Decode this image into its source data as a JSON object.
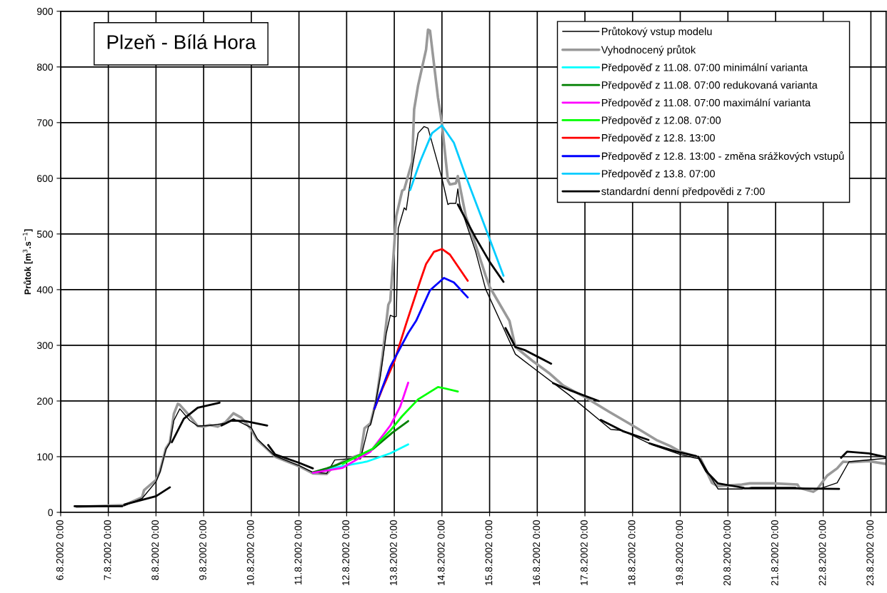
{
  "chart_data": {
    "type": "line",
    "title": "Plzeň - Bílá Hora",
    "ylabel": "Průtok [m$^{3}$.s$^{−1}$]",
    "xlim": [
      "2002-08-06T00:00",
      "2002-08-23T07:40"
    ],
    "ylim": [
      0,
      900
    ],
    "yticks": [
      0,
      100,
      200,
      300,
      400,
      500,
      600,
      700,
      800,
      900
    ],
    "xticks": [
      {
        "value": "2002-08-06",
        "label": "6.8.2002 0:00"
      },
      {
        "value": "2002-08-07",
        "label": "7.8.2002 0:00"
      },
      {
        "value": "2002-08-08",
        "label": "8.8.2002 0:00"
      },
      {
        "value": "2002-08-09",
        "label": "9.8.2002 0:00"
      },
      {
        "value": "2002-08-10",
        "label": "10.8.2002 0:00"
      },
      {
        "value": "2002-08-11",
        "label": "11.8.2002 0:00"
      },
      {
        "value": "2002-08-12",
        "label": "12.8.2002 0:00"
      },
      {
        "value": "2002-08-13",
        "label": "13.8.2002 0:00"
      },
      {
        "value": "2002-08-14",
        "label": "14.8.2002 0:00"
      },
      {
        "value": "2002-08-15",
        "label": "15.8.2002 0:00"
      },
      {
        "value": "2002-08-16",
        "label": "16.8.2002 0:00"
      },
      {
        "value": "2002-08-17",
        "label": "17.8.2002 0:00"
      },
      {
        "value": "2002-08-18",
        "label": "18.8.2002 0:00"
      },
      {
        "value": "2002-08-19",
        "label": "19.8.2002 0:00"
      },
      {
        "value": "2002-08-20",
        "label": "20.8.2002 0:00"
      },
      {
        "value": "2002-08-21",
        "label": "21.8.2002 0:00"
      },
      {
        "value": "2002-08-22",
        "label": "22.8.2002 0:00"
      },
      {
        "value": "2002-08-23",
        "label": "23.8.2002 0:00"
      }
    ],
    "grid": true,
    "legend": "top right",
    "marker": "none",
    "line_style": "solid",
    "series": [
      {
        "name": "Průtokový vstup modelu",
        "color": "#000000",
        "x": [
          "2002-08-06T08:00",
          "2002-08-07T08:00",
          "2002-08-07T17:00",
          "2002-08-08T00:00",
          "2002-08-08T02:00",
          "2002-08-08T05:00",
          "2002-08-08T07:00",
          "2002-08-08T09:00",
          "2002-08-08T12:00",
          "2002-08-08T17:00",
          "2002-08-08T21:00",
          "2002-08-09T03:00",
          "2002-08-09T11:00",
          "2002-08-09T15:00",
          "2002-08-10T00:00",
          "2002-08-10T03:00",
          "2002-08-10T07:00",
          "2002-08-10T12:00",
          "2002-08-11T00:00",
          "2002-08-11T07:00",
          "2002-08-11T14:00",
          "2002-08-11T18:00",
          "2002-08-12T00:00",
          "2002-08-12T07:00",
          "2002-08-12T11:00",
          "2002-08-12T12:00",
          "2002-08-12T14:00",
          "2002-08-12T17:00",
          "2002-08-12T20:00",
          "2002-08-12T22:00",
          "2002-08-13T00:00",
          "2002-08-13T01:00",
          "2002-08-13T02:00",
          "2002-08-13T05:00",
          "2002-08-13T06:00",
          "2002-08-13T09:00",
          "2002-08-13T12:00",
          "2002-08-13T15:00",
          "2002-08-13T17:00",
          "2002-08-14T00:00",
          "2002-08-14T03:00",
          "2002-08-14T04:00",
          "2002-08-14T07:00",
          "2002-08-14T08:00",
          "2002-08-14T09:00",
          "2002-08-14T17:00",
          "2002-08-14T22:00",
          "2002-08-15T07:00",
          "2002-08-15T13:00",
          "2002-08-16T00:00",
          "2002-08-16T16:00",
          "2002-08-17T13:00",
          "2002-08-17T19:00",
          "2002-08-18T10:00",
          "2002-08-19T00:00",
          "2002-08-19T07:00",
          "2002-08-19T10:00",
          "2002-08-19T19:00",
          "2002-08-20T07:00",
          "2002-08-20T12:00",
          "2002-08-21T10:00",
          "2002-08-21T12:00",
          "2002-08-21T22:00",
          "2002-08-22T07:00",
          "2002-08-22T13:00",
          "2002-08-23T07:40"
        ],
        "values": [
          11,
          12,
          25,
          55,
          72,
          113,
          125,
          165,
          186,
          165,
          155,
          156,
          160,
          168,
          152,
          132,
          118,
          101,
          84,
          72,
          70,
          94,
          96,
          96,
          154,
          157,
          186,
          245,
          322,
          354,
          351,
          352,
          510,
          547,
          543,
          617,
          681,
          693,
          690,
          600,
          553,
          555,
          555,
          581,
          553,
          468,
          401,
          331,
          284,
          254,
          211,
          149,
          147,
          121,
          104,
          98,
          96,
          42,
          42,
          45,
          45,
          42,
          42,
          53,
          91,
          97
        ]
      },
      {
        "name": "Vyhodnocený průtok",
        "color": "#999999",
        "x": [
          "2002-08-06T08:00",
          "2002-08-07T08:00",
          "2002-08-07T17:00",
          "2002-08-07T18:00",
          "2002-08-08T00:00",
          "2002-08-08T02:00",
          "2002-08-08T05:00",
          "2002-08-08T07:00",
          "2002-08-08T09:00",
          "2002-08-08T11:00",
          "2002-08-08T12:00",
          "2002-08-08T17:00",
          "2002-08-08T21:00",
          "2002-08-09T00:00",
          "2002-08-09T03:00",
          "2002-08-09T07:00",
          "2002-08-09T11:00",
          "2002-08-09T15:00",
          "2002-08-09T19:00",
          "2002-08-10T00:00",
          "2002-08-10T03:00",
          "2002-08-10T07:00",
          "2002-08-10T12:00",
          "2002-08-11T00:00",
          "2002-08-11T07:00",
          "2002-08-11T14:00",
          "2002-08-11T17:00",
          "2002-08-12T00:00",
          "2002-08-12T07:00",
          "2002-08-12T09:00",
          "2002-08-12T12:00",
          "2002-08-12T15:00",
          "2002-08-12T18:00",
          "2002-08-12T21:00",
          "2002-08-12T22:00",
          "2002-08-13T01:00",
          "2002-08-13T04:00",
          "2002-08-13T05:00",
          "2002-08-13T09:00",
          "2002-08-13T10:00",
          "2002-08-13T12:00",
          "2002-08-13T16:00",
          "2002-08-13T17:00",
          "2002-08-13T18:00",
          "2002-08-13T22:00",
          "2002-08-14T00:00",
          "2002-08-14T03:00",
          "2002-08-14T04:00",
          "2002-08-14T07:00",
          "2002-08-14T08:00",
          "2002-08-14T12:00",
          "2002-08-14T17:00",
          "2002-08-14T22:00",
          "2002-08-15T00:00",
          "2002-08-15T10:00",
          "2002-08-15T13:00",
          "2002-08-15T22:00",
          "2002-08-16T06:00",
          "2002-08-16T13:00",
          "2002-08-17T00:00",
          "2002-08-17T12:00",
          "2002-08-18T00:00",
          "2002-08-18T12:00",
          "2002-08-18T19:00",
          "2002-08-19T00:00",
          "2002-08-19T10:00",
          "2002-08-19T16:00",
          "2002-08-19T19:00",
          "2002-08-20T07:00",
          "2002-08-20T11:00",
          "2002-08-20T23:00",
          "2002-08-21T11:00",
          "2002-08-21T12:00",
          "2002-08-21T19:00",
          "2002-08-21T21:00",
          "2002-08-22T02:00",
          "2002-08-22T07:00",
          "2002-08-22T10:00",
          "2002-08-22T14:00",
          "2002-08-22T23:00",
          "2002-08-23T07:40"
        ],
        "values": [
          10,
          13,
          27,
          40,
          58,
          74,
          115,
          126,
          177,
          195,
          193,
          173,
          155,
          154,
          157,
          154,
          162,
          178,
          170,
          149,
          130,
          117,
          100,
          83,
          70,
          69,
          81,
          95,
          104,
          151,
          160,
          203,
          279,
          373,
          380,
          532,
          578,
          580,
          630,
          724,
          767,
          831,
          867,
          865,
          745,
          698,
          596,
          589,
          591,
          604,
          532,
          480,
          425,
          405,
          344,
          297,
          271,
          250,
          228,
          207,
          181,
          156,
          130,
          119,
          109,
          98,
          53,
          47,
          50,
          52,
          52,
          50,
          44,
          37,
          42,
          66,
          79,
          91,
          90,
          92,
          87
        ]
      },
      {
        "name": "Předpověď z 11.08. 07:00 minimální varianta",
        "color": "#00ffff",
        "x": [
          "2002-08-11T07:00",
          "2002-08-11T22:00",
          "2002-08-12T10:00",
          "2002-08-12T22:00",
          "2002-08-13T07:00"
        ],
        "values": [
          71,
          83,
          91,
          106,
          122
        ]
      },
      {
        "name": "Předpověď z 11.08. 07:00 redukovaná varianta",
        "color": "#008000",
        "x": [
          "2002-08-11T07:00",
          "2002-08-11T14:00",
          "2002-08-11T22:00",
          "2002-08-12T13:00",
          "2002-08-12T23:00",
          "2002-08-13T07:00"
        ],
        "values": [
          72,
          79,
          89,
          113,
          143,
          164
        ]
      },
      {
        "name": "Předpověď z 11.08. 07:00 maximální varianta",
        "color": "#ff00ff",
        "x": [
          "2002-08-11T07:00",
          "2002-08-11T22:00",
          "2002-08-12T12:00",
          "2002-08-12T22:00",
          "2002-08-13T03:00",
          "2002-08-13T07:00"
        ],
        "values": [
          71,
          80,
          109,
          156,
          190,
          233
        ]
      },
      {
        "name": "Předpověď z 12.08. 07:00",
        "color": "#00ff00",
        "x": [
          "2002-08-11T22:00",
          "2002-08-12T13:00",
          "2002-08-12T22:00",
          "2002-08-13T04:00",
          "2002-08-13T12:00",
          "2002-08-13T22:00",
          "2002-08-14T01:00",
          "2002-08-14T08:00"
        ],
        "values": [
          87,
          114,
          147,
          173,
          203,
          225,
          223,
          217
        ]
      },
      {
        "name": "Předpověď z 12.8. 13:00",
        "color": "#ff0000",
        "x": [
          "2002-08-12T14:00",
          "2002-08-12T18:00",
          "2002-08-13T00:00",
          "2002-08-13T06:00",
          "2002-08-13T13:00",
          "2002-08-13T16:00",
          "2002-08-13T20:00",
          "2002-08-14T00:00",
          "2002-08-14T04:00",
          "2002-08-14T13:00"
        ],
        "values": [
          186,
          222,
          271,
          339,
          415,
          446,
          468,
          473,
          463,
          416
        ]
      },
      {
        "name": "Předpověď z 12.8. 13:00 - změna srážkových vstupů",
        "color": "#0000ff",
        "x": [
          "2002-08-12T14:00",
          "2002-08-12T22:00",
          "2002-08-13T07:00",
          "2002-08-13T11:00",
          "2002-08-13T18:00",
          "2002-08-14T01:00",
          "2002-08-14T06:00",
          "2002-08-14T13:00"
        ],
        "values": [
          186,
          262,
          322,
          344,
          399,
          421,
          413,
          386
        ]
      },
      {
        "name": "Předpověď z 13.8. 07:00",
        "color": "#00ccff",
        "x": [
          "2002-08-13T08:00",
          "2002-08-13T13:00",
          "2002-08-13T19:00",
          "2002-08-14T00:00",
          "2002-08-14T06:00",
          "2002-08-14T12:00",
          "2002-08-14T22:00",
          "2002-08-15T07:00"
        ],
        "values": [
          579,
          630,
          681,
          695,
          664,
          604,
          510,
          425
        ]
      },
      {
        "name": "standardní denní předpovědi z 7:00",
        "color": "#000000",
        "x": [
          "2002-08-06T07:00",
          "2002-08-07T07:00",
          "2002-08-07T07:30",
          "2002-08-07T08:00",
          "2002-08-08T00:00",
          "2002-08-08T07:00",
          "2002-08-08T07:30",
          "2002-08-08T08:00",
          "2002-08-08T14:00",
          "2002-08-08T21:00",
          "2002-08-09T08:00",
          "2002-08-09T08:30",
          "2002-08-09T09:00",
          "2002-08-09T14:00",
          "2002-08-09T21:00",
          "2002-08-10T08:00",
          "2002-08-10T08:15",
          "2002-08-10T08:30",
          "2002-08-10T12:00",
          "2002-08-11T00:00",
          "2002-08-11T07:00",
          "2002-08-11T08:00",
          "2002-08-14T08:00",
          "2002-08-14T17:00",
          "2002-08-15T00:00",
          "2002-08-15T07:00",
          "2002-08-15T07:30",
          "2002-08-15T08:00",
          "2002-08-15T13:00",
          "2002-08-15T18:00",
          "2002-08-16T07:00",
          "2002-08-16T07:30",
          "2002-08-16T08:00",
          "2002-08-16T16:00",
          "2002-08-17T07:00",
          "2002-08-17T07:30",
          "2002-08-17T08:00",
          "2002-08-17T19:00",
          "2002-08-18T08:00",
          "2002-08-18T08:15",
          "2002-08-18T08:30",
          "2002-08-18T22:00",
          "2002-08-19T08:00",
          "2002-08-19T08:30",
          "2002-08-19T09:00",
          "2002-08-19T13:00",
          "2002-08-19T19:00",
          "2002-08-20T00:00",
          "2002-08-20T08:00",
          "2002-08-20T08:15",
          "2002-08-20T08:30",
          "2002-08-21T08:00",
          "2002-08-21T08:15",
          "2002-08-21T08:30",
          "2002-08-22T08:00",
          "2002-08-22T08:30",
          "2002-08-22T09:00",
          "2002-08-22T12:00",
          "2002-08-22T23:00",
          "2002-08-23T07:40"
        ],
        "values": [
          11,
          11,
          null,
          14,
          29,
          45,
          null,
          126,
          168,
          188,
          197,
          null,
          156,
          165,
          164,
          156,
          null,
          121,
          104,
          89,
          79,
          null,
          553,
          493,
          450,
          414,
          null,
          331,
          297,
          291,
          267,
          null,
          232,
          220,
          200,
          null,
          166,
          146,
          130,
          null,
          124,
          109,
          101,
          null,
          100,
          74,
          52,
          49,
          44,
          null,
          43,
          43,
          null,
          43,
          42,
          null,
          98,
          109,
          106,
          99
        ]
      }
    ]
  }
}
